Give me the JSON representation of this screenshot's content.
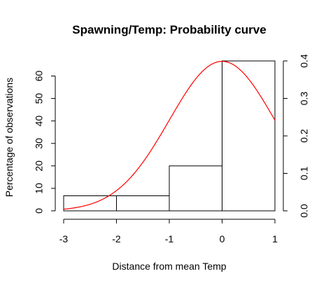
{
  "chart_data": {
    "type": "bar",
    "title": "Spawning/Temp: Probability curve",
    "xlabel": "Distance from mean Temp",
    "ylabel": "Percentage of observations",
    "xlim": [
      -3,
      1
    ],
    "ylim": [
      0,
      66.7
    ],
    "x_ticks": [
      "-3",
      "-2",
      "-1",
      "0",
      "1"
    ],
    "y_ticks": [
      "0",
      "10",
      "20",
      "30",
      "40",
      "50",
      "60"
    ],
    "bins": [
      {
        "from": -3,
        "to": -2,
        "value": 6.7
      },
      {
        "from": -2,
        "to": -1,
        "value": 6.7
      },
      {
        "from": -1,
        "to": 0,
        "value": 20
      },
      {
        "from": 0,
        "to": 1,
        "value": 66.7
      }
    ],
    "curve": {
      "type": "normal-density",
      "mean": 0,
      "sd": 1,
      "color": "#ff0000",
      "axis": "right"
    },
    "right_axis": {
      "ticks": [
        "0.0",
        "0.1",
        "0.2",
        "0.3",
        "0.4"
      ],
      "ylim": [
        0,
        0.4
      ]
    },
    "colors": {
      "bar_fill": "#ffffff",
      "bar_stroke": "#000000",
      "curve": "#ff0000"
    },
    "grid": false
  }
}
